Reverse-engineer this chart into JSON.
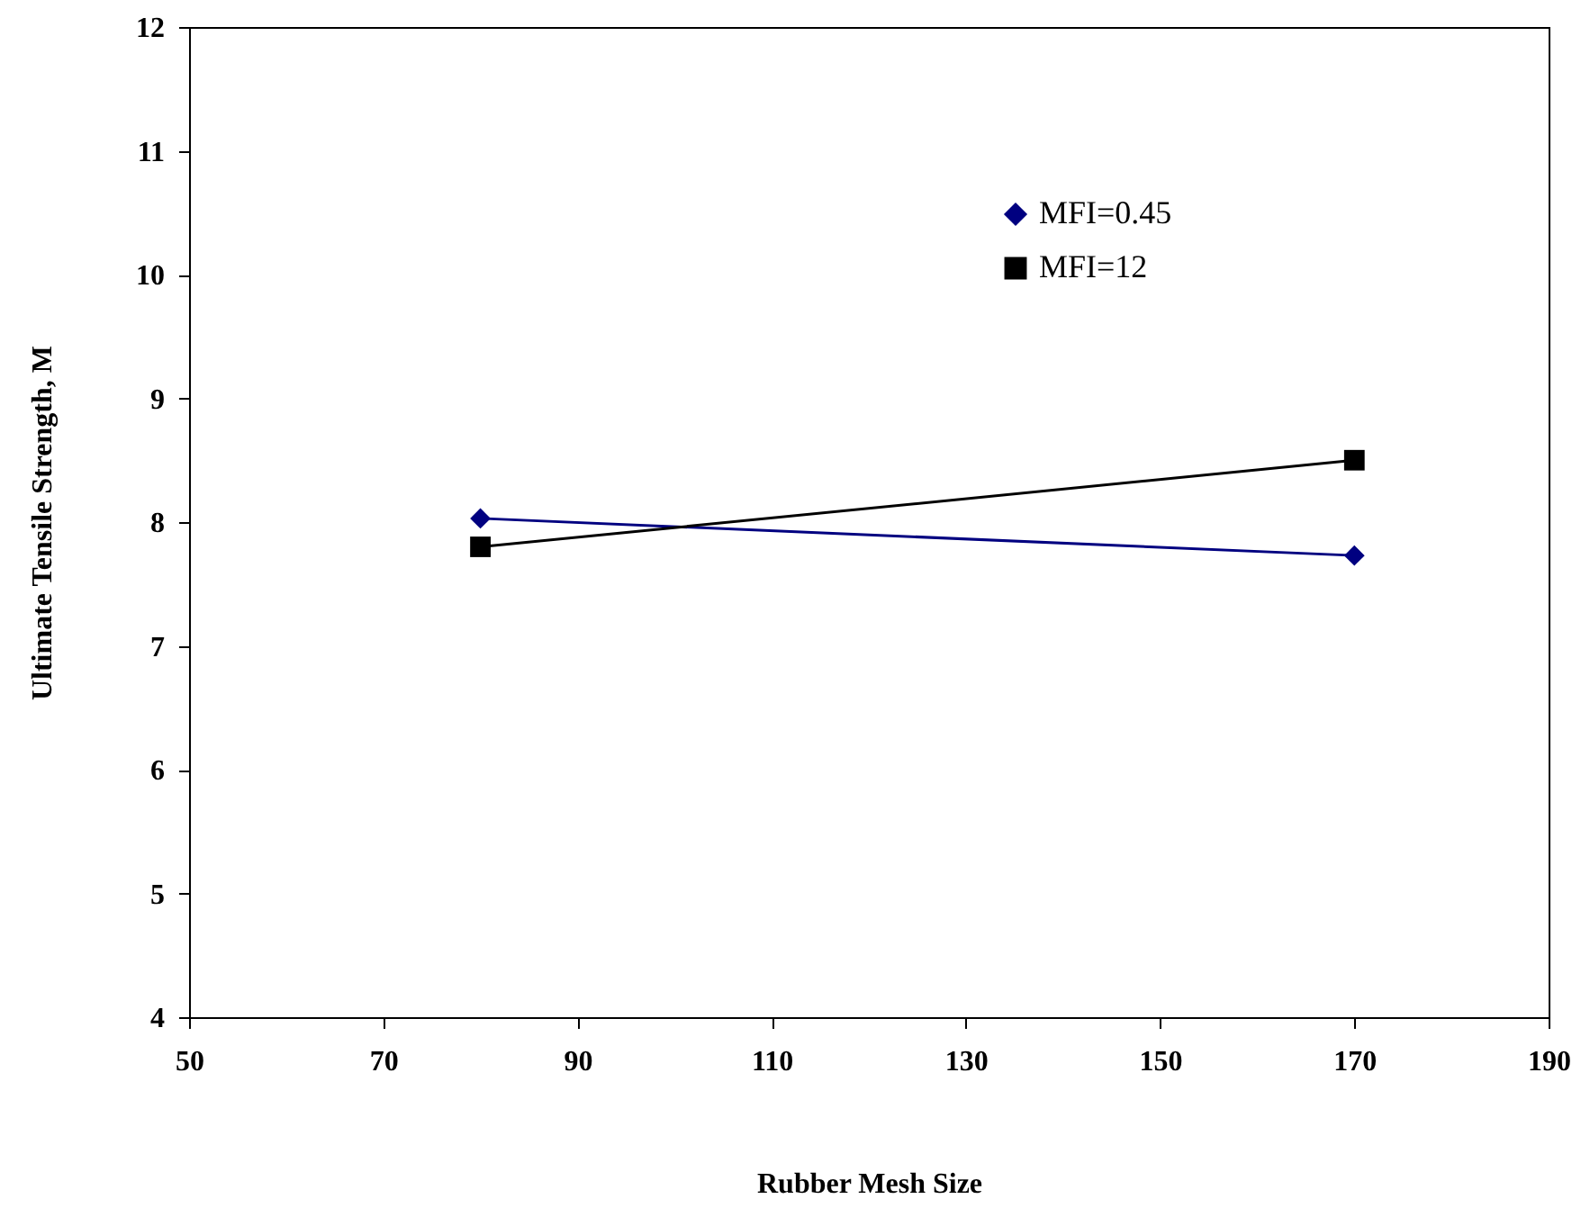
{
  "chart_data": {
    "type": "line",
    "xlabel": "Rubber Mesh Size",
    "ylabel": "Ultimate Tensile Strength, M",
    "x": [
      80,
      170
    ],
    "series": [
      {
        "name": "MFI=0.45",
        "color": "#000080",
        "marker": "diamond",
        "values": [
          8.03,
          7.73
        ]
      },
      {
        "name": "MFI=12",
        "color": "#000000",
        "marker": "square",
        "values": [
          7.8,
          8.5
        ]
      }
    ],
    "xlim": [
      50,
      190
    ],
    "xticks": [
      50,
      70,
      90,
      110,
      130,
      150,
      170,
      190
    ],
    "ylim": [
      4,
      12
    ],
    "yticks": [
      4,
      5,
      6,
      7,
      8,
      9,
      10,
      11,
      12
    ],
    "grid": false,
    "legend": "top right"
  }
}
